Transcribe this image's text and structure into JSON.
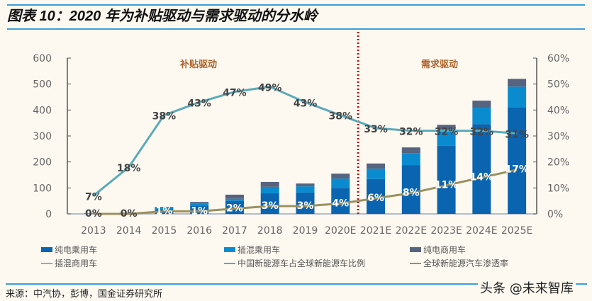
{
  "title": "图表 10：2020 年为补贴驱动与需求驱动的分水岭",
  "source": "来源：中汽协，彭博，国金证券研究所",
  "watermark": "头条 @未来智库",
  "chart_data": {
    "type": "bar+line",
    "categories": [
      "2013",
      "2014",
      "2015",
      "2016",
      "2017",
      "2018",
      "2019",
      "2020E",
      "2021E",
      "2022E",
      "2023E",
      "2024E",
      "2025E"
    ],
    "y_left": {
      "range": [
        0,
        600
      ],
      "ticks": [
        "0",
        "100",
        "200",
        "300",
        "400",
        "500",
        "600"
      ]
    },
    "y_right": {
      "range": [
        0,
        60
      ],
      "ticks": [
        "0%",
        "10%",
        "20%",
        "30%",
        "40%",
        "50%",
        "60%"
      ]
    },
    "grid": false,
    "legend_placement": "bottom",
    "annotations": {
      "left_region": "补贴驱动",
      "right_region": "需求驱动",
      "divider_after": "2020E"
    },
    "bar_series": [
      {
        "name": "纯电乘用车",
        "color": "#0b64b0",
        "values": [
          1,
          3,
          18,
          30,
          50,
          79,
          82,
          100,
          134,
          188,
          262,
          346,
          411
        ]
      },
      {
        "name": "插混乘用车",
        "color": "#0a8bd0",
        "values": [
          0.5,
          1,
          7,
          10,
          8,
          25,
          24,
          36,
          40,
          46,
          65,
          63,
          79
        ]
      },
      {
        "name": "纯电商用车",
        "color": "#56647f",
        "values": [
          0.5,
          1,
          2,
          6,
          16,
          19,
          11,
          19,
          20,
          22,
          16,
          27,
          30
        ]
      },
      {
        "name": "插混商用车",
        "color": "#9aa7bf",
        "values": [
          0,
          0,
          0,
          0,
          0,
          0,
          0,
          0,
          0,
          0,
          0,
          0,
          0
        ]
      }
    ],
    "line_series": [
      {
        "name": "中国新能源车占全球新能源车比例",
        "color": "#5aaabb",
        "values": [
          7,
          18,
          38,
          43,
          47,
          49,
          43,
          38,
          33,
          32,
          32,
          32,
          31
        ],
        "labels": [
          "7%",
          "18%",
          "38%",
          "43%",
          "47%",
          "49%",
          "43%",
          "38%",
          "33%",
          "32%",
          "32%",
          "32%",
          "31%"
        ]
      },
      {
        "name": "全球新能源汽车渗透率",
        "color": "#9a9060",
        "values": [
          0,
          0,
          1,
          1,
          2,
          3,
          3,
          4,
          6,
          8,
          11,
          14,
          17
        ],
        "labels": [
          "0%",
          "0%",
          "1%",
          "1%",
          "2%",
          "3%",
          "3%",
          "4%",
          "6%",
          "8%",
          "11%",
          "14%",
          "17%"
        ]
      }
    ]
  }
}
